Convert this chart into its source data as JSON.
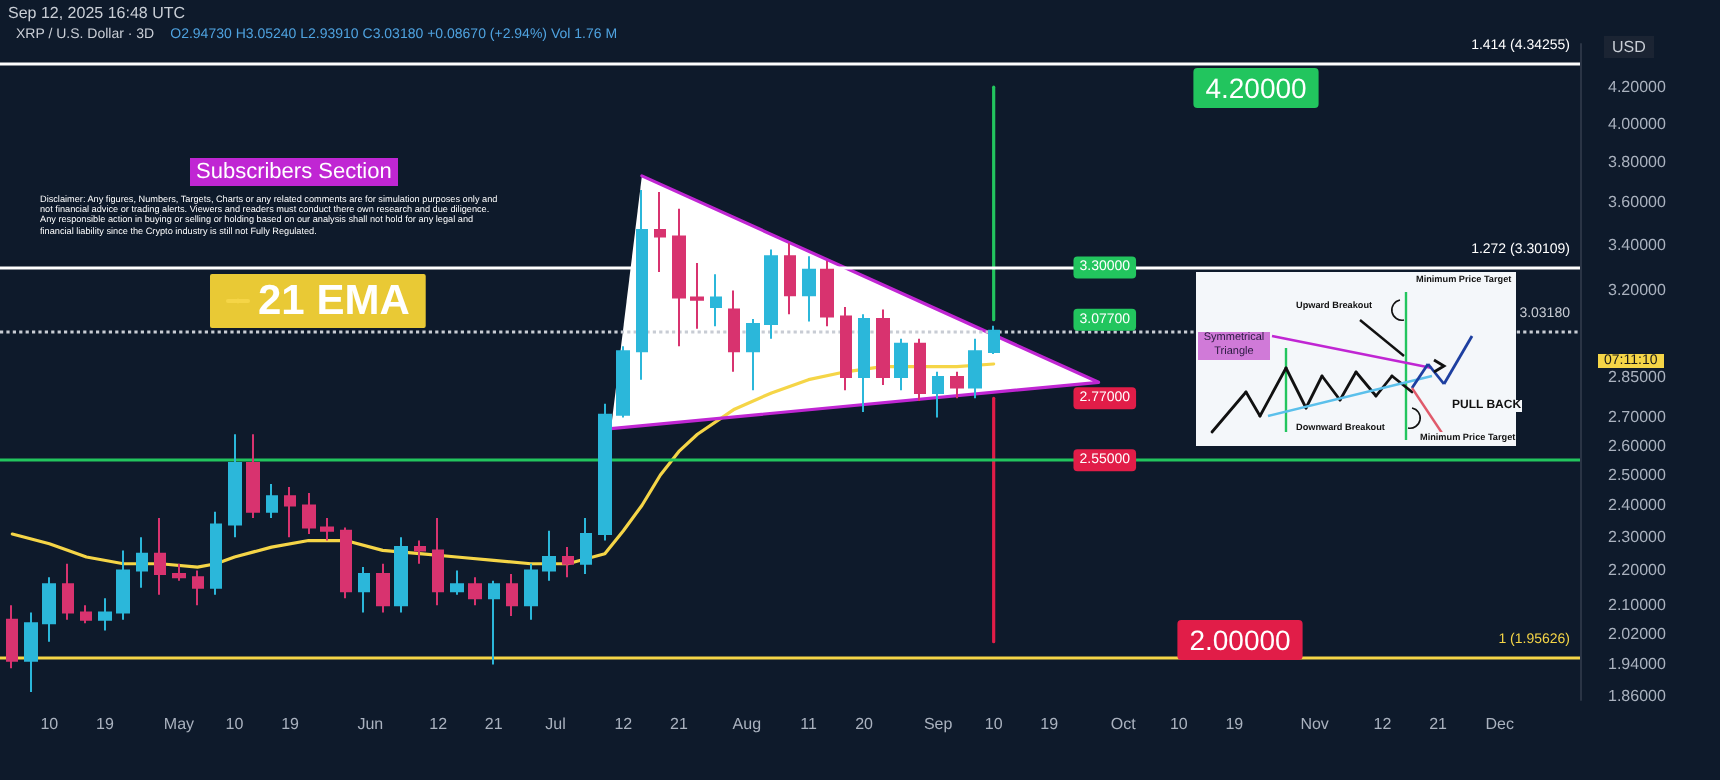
{
  "chart_data": {
    "type": "candlestick",
    "title": "XRP / U.S. Dollar · 3D",
    "subtitle": "O2.94730 H3.05240 L2.93910 C3.03180 +0.08670 (+2.94%) Vol 1.76 M",
    "x": [
      "--04-04",
      "--04-07",
      "--04-10",
      "--04-13",
      "--04-16",
      "--04-19",
      "--04-22",
      "--04-25",
      "--04-28",
      "--05-01",
      "--05-04",
      "--05-07",
      "--05-10",
      "--05-13",
      "--05-16",
      "--05-19",
      "--05-22",
      "--05-25",
      "--05-28",
      "--05-31",
      "--06-03",
      "--06-06",
      "--06-09",
      "--06-12",
      "--06-15",
      "--06-18",
      "--06-21",
      "--06-24",
      "--06-27",
      "--06-30",
      "--07-03",
      "--07-06",
      "--07-09",
      "--07-12",
      "--07-15",
      "--07-18",
      "--07-21",
      "--07-24",
      "--07-27",
      "--07-30",
      "--08-02",
      "--08-05",
      "--08-08",
      "--08-11",
      "--08-14",
      "--08-17",
      "--08-20",
      "--08-23",
      "--08-26",
      "--08-29",
      "--09-01",
      "--09-04",
      "--09-07",
      "--09-10"
    ],
    "ohlc": [
      [
        2.06,
        2.1,
        1.93,
        1.95
      ],
      [
        1.95,
        2.08,
        1.87,
        2.05
      ],
      [
        2.05,
        2.18,
        2.0,
        2.16
      ],
      [
        2.16,
        2.22,
        2.06,
        2.08
      ],
      [
        2.08,
        2.1,
        2.05,
        2.06
      ],
      [
        2.06,
        2.12,
        2.03,
        2.08
      ],
      [
        2.08,
        2.26,
        2.06,
        2.2
      ],
      [
        2.2,
        2.3,
        2.15,
        2.25
      ],
      [
        2.25,
        2.36,
        2.13,
        2.19
      ],
      [
        2.19,
        2.22,
        2.17,
        2.18
      ],
      [
        2.18,
        2.2,
        2.1,
        2.15
      ],
      [
        2.15,
        2.38,
        2.13,
        2.34
      ],
      [
        2.34,
        2.64,
        2.3,
        2.54
      ],
      [
        2.54,
        2.64,
        2.36,
        2.38
      ],
      [
        2.38,
        2.47,
        2.36,
        2.43
      ],
      [
        2.43,
        2.46,
        2.3,
        2.4
      ],
      [
        2.4,
        2.44,
        2.31,
        2.33
      ],
      [
        2.33,
        2.36,
        2.29,
        2.32
      ],
      [
        2.32,
        2.33,
        2.12,
        2.14
      ],
      [
        2.14,
        2.21,
        2.08,
        2.19
      ],
      [
        2.19,
        2.22,
        2.08,
        2.1
      ],
      [
        2.1,
        2.3,
        2.08,
        2.27
      ],
      [
        2.27,
        2.29,
        2.22,
        2.26
      ],
      [
        2.26,
        2.36,
        2.1,
        2.14
      ],
      [
        2.14,
        2.2,
        2.13,
        2.16
      ],
      [
        2.16,
        2.18,
        2.1,
        2.12
      ],
      [
        2.12,
        2.17,
        1.94,
        2.16
      ],
      [
        2.16,
        2.19,
        2.07,
        2.1
      ],
      [
        2.1,
        2.22,
        2.06,
        2.2
      ],
      [
        2.2,
        2.32,
        2.17,
        2.24
      ],
      [
        2.24,
        2.27,
        2.18,
        2.22
      ],
      [
        2.22,
        2.36,
        2.19,
        2.31
      ],
      [
        2.31,
        2.75,
        2.29,
        2.71
      ],
      [
        2.71,
        2.97,
        2.7,
        2.95
      ],
      [
        2.95,
        3.66,
        2.84,
        3.47
      ],
      [
        3.47,
        3.65,
        3.28,
        3.44
      ],
      [
        3.44,
        3.57,
        2.97,
        3.17
      ],
      [
        3.17,
        3.32,
        3.04,
        3.16
      ],
      [
        3.13,
        3.27,
        3.05,
        3.17
      ],
      [
        3.12,
        3.2,
        2.87,
        2.95
      ],
      [
        2.95,
        3.08,
        2.8,
        3.06
      ],
      [
        3.06,
        3.38,
        3.0,
        3.35
      ],
      [
        3.35,
        3.41,
        3.1,
        3.18
      ],
      [
        3.18,
        3.35,
        3.07,
        3.29
      ],
      [
        3.29,
        3.33,
        3.05,
        3.09
      ],
      [
        3.09,
        3.13,
        2.8,
        2.85
      ],
      [
        2.85,
        3.1,
        2.72,
        3.08
      ],
      [
        3.08,
        3.12,
        2.82,
        2.85
      ],
      [
        2.85,
        3.0,
        2.8,
        2.98
      ],
      [
        2.98,
        3.0,
        2.76,
        2.79
      ],
      [
        2.79,
        2.87,
        2.7,
        2.85
      ],
      [
        2.85,
        2.87,
        2.77,
        2.81
      ],
      [
        2.81,
        3.0,
        2.77,
        2.95
      ],
      [
        2.9473,
        3.0524,
        2.9391,
        3.0318
      ]
    ],
    "colors": [
      "#d8336f",
      "#2bb7da",
      "#2bb7da",
      "#d8336f",
      "#d8336f",
      "#2bb7da",
      "#2bb7da",
      "#2bb7da",
      "#d8336f",
      "#d8336f",
      "#d8336f",
      "#2bb7da",
      "#2bb7da",
      "#d8336f",
      "#2bb7da",
      "#d8336f",
      "#d8336f",
      "#d8336f",
      "#d8336f",
      "#2bb7da",
      "#d8336f",
      "#2bb7da",
      "#d8336f",
      "#d8336f",
      "#2bb7da",
      "#d8336f",
      "#2bb7da",
      "#d8336f",
      "#2bb7da",
      "#2bb7da",
      "#d8336f",
      "#2bb7da",
      "#2bb7da",
      "#2bb7da",
      "#2bb7da",
      "#d8336f",
      "#d8336f",
      "#d8336f",
      "#2bb7da",
      "#d8336f",
      "#2bb7da",
      "#2bb7da",
      "#d8336f",
      "#2bb7da",
      "#d8336f",
      "#d8336f",
      "#2bb7da",
      "#d8336f",
      "#2bb7da",
      "#d8336f",
      "#2bb7da",
      "#d8336f",
      "#2bb7da",
      "#2bb7da"
    ],
    "series": [
      {
        "name": "21 EMA",
        "type": "line",
        "color": "#f5d547",
        "x": [
          "--04-04",
          "--04-10",
          "--04-16",
          "--04-22",
          "--04-28",
          "--05-04",
          "--05-07",
          "--05-10",
          "--05-16",
          "--05-22",
          "--05-28",
          "--06-03",
          "--06-09",
          "--06-15",
          "--06-21",
          "--06-27",
          "--07-03",
          "--07-09",
          "--07-12",
          "--07-15",
          "--07-18",
          "--07-21",
          "--07-24",
          "--07-30",
          "--08-05",
          "--08-11",
          "--08-17",
          "--08-23",
          "--08-29",
          "--09-04",
          "--09-10"
        ],
        "values": [
          2.31,
          2.28,
          2.24,
          2.22,
          2.22,
          2.21,
          2.22,
          2.24,
          2.27,
          2.29,
          2.29,
          2.26,
          2.25,
          2.24,
          2.23,
          2.22,
          2.22,
          2.25,
          2.32,
          2.4,
          2.5,
          2.58,
          2.64,
          2.73,
          2.79,
          2.84,
          2.87,
          2.89,
          2.89,
          2.89,
          2.9
        ]
      },
      {
        "type": "line",
        "color": "#c026d3",
        "x": [
          "--07-10",
          "--09-27",
          "--07-15"
        ],
        "values": [
          2.66,
          2.83,
          3.73
        ]
      },
      {
        "type": "line",
        "color": "#22c55e",
        "x": [
          "--09-10",
          "--09-10"
        ],
        "values": [
          3.077,
          4.2
        ]
      },
      {
        "type": "line",
        "color": "#e11d48",
        "x": [
          "--09-10",
          "--09-10"
        ],
        "values": [
          2.77,
          2.0
        ]
      }
    ],
    "xlim": [
      "--04-02",
      "--12-14"
    ],
    "xticks": [
      {
        "value": "--04-10",
        "label": "10"
      },
      {
        "value": "--04-19",
        "label": "19"
      },
      {
        "value": "--05-01",
        "label": "May"
      },
      {
        "value": "--05-10",
        "label": "10"
      },
      {
        "value": "--05-19",
        "label": "19"
      },
      {
        "value": "--06-01",
        "label": "Jun"
      },
      {
        "value": "--06-12",
        "label": "12"
      },
      {
        "value": "--06-21",
        "label": "21"
      },
      {
        "value": "--07-01",
        "label": "Jul"
      },
      {
        "value": "--07-12",
        "label": "12"
      },
      {
        "value": "--07-21",
        "label": "21"
      },
      {
        "value": "--08-01",
        "label": "Aug"
      },
      {
        "value": "--08-11",
        "label": "11"
      },
      {
        "value": "--08-20",
        "label": "20"
      },
      {
        "value": "--09-01",
        "label": "Sep"
      },
      {
        "value": "--09-10",
        "label": "10"
      },
      {
        "value": "--09-19",
        "label": "19"
      },
      {
        "value": "--10-01",
        "label": "Oct"
      },
      {
        "value": "--10-10",
        "label": "10"
      },
      {
        "value": "--10-19",
        "label": "19"
      },
      {
        "value": "--11-01",
        "label": "Nov"
      },
      {
        "value": "--11-12",
        "label": "12"
      },
      {
        "value": "--11-21",
        "label": "21"
      },
      {
        "value": "--12-01",
        "label": "Dec"
      }
    ],
    "log": "y",
    "ylim": [
      1.85,
      4.45
    ],
    "yticks": [
      {
        "value": 4.2,
        "label": "4.20000"
      },
      {
        "value": 4.0,
        "label": "4.00000"
      },
      {
        "value": 3.8,
        "label": "3.80000"
      },
      {
        "value": 3.6,
        "label": "3.60000"
      },
      {
        "value": 3.4,
        "label": "3.40000"
      },
      {
        "value": 3.2,
        "label": "3.20000"
      },
      {
        "value": 2.85,
        "label": "2.85000"
      },
      {
        "value": 2.7,
        "label": "2.70000"
      },
      {
        "value": 2.6,
        "label": "2.60000"
      },
      {
        "value": 2.5,
        "label": "2.50000"
      },
      {
        "value": 2.4,
        "label": "2.40000"
      },
      {
        "value": 2.3,
        "label": "2.30000"
      },
      {
        "value": 2.2,
        "label": "2.20000"
      },
      {
        "value": 2.1,
        "label": "2.10000"
      },
      {
        "value": 2.02,
        "label": "2.02000"
      },
      {
        "value": 1.94,
        "label": "1.94000"
      },
      {
        "value": 1.86,
        "label": "1.86000"
      }
    ],
    "ref_lines": [
      {
        "axis": "y",
        "value": 4.34255,
        "label": "1.414 (4.34255)",
        "color": "#ffffff"
      },
      {
        "axis": "y",
        "value": 3.30109,
        "label": "1.272 (3.30109)",
        "color": "#ffffff"
      },
      {
        "axis": "y",
        "value": 3.0318,
        "label": "3.03180",
        "color": "#c8ccd4",
        "line_style": "dotted"
      },
      {
        "axis": "y",
        "value": 2.55,
        "label": null,
        "color": "#22c55e"
      },
      {
        "axis": "y",
        "value": 1.95626,
        "label": "1 (1.95626)",
        "color": "#f5d547"
      }
    ],
    "legend": "left",
    "annotations": [
      "Sep 12, 2025 16:48 UTC",
      "Subscribers Section",
      "Disclaimer: Any figures, Numbers, Targets, Charts or any related comments are for simulation purposes only and not financial advice or trading alerts. Viewers and readers must conduct there own research and due diligence. Any responsible action in buying or selling or holding based on our analysis shall not hold for any legal and financial liability since the Crypto industry is still not Fully Regulated.",
      "USD",
      "07:11:10",
      "Upward Breakout",
      "Downward Breakout",
      "Minimum Price Target",
      "Minimum Price Target",
      "Symmetrical Triangle",
      "PULL BACK",
      "4.20000",
      "2.00000",
      {
        "text": "3.30000",
        "x": "--09-28",
        "y": 3.3
      },
      {
        "text": "3.07700",
        "x": "--09-28",
        "y": 3.077
      },
      {
        "text": "2.77000",
        "x": "--09-28",
        "y": 2.77
      },
      {
        "text": "2.55000",
        "x": "--09-28",
        "y": 2.55
      }
    ]
  }
}
